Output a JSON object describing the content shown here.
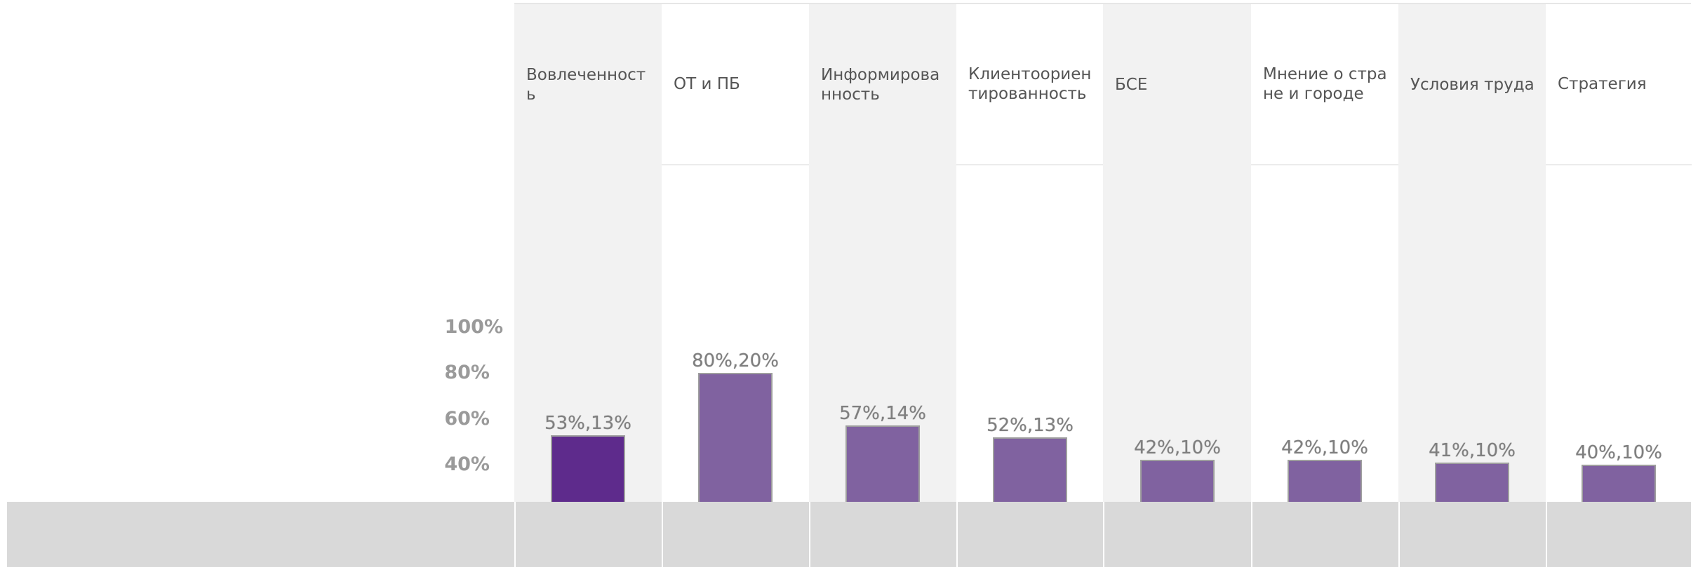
{
  "chart_data": {
    "type": "bar",
    "categories": [
      "Вовлеченность",
      "ОТ и ПБ",
      "Информированность",
      "Клиентоориентированность",
      "БСЕ",
      "Мнение о стране и городе",
      "Условия труда",
      "Стратегия"
    ],
    "values": [
      53,
      80,
      57,
      52,
      42,
      42,
      41,
      40
    ],
    "secondary_values": [
      13,
      20,
      14,
      13,
      10,
      10,
      10,
      10
    ],
    "data_labels": [
      "53%,13%",
      "80%,20%",
      "57%,14%",
      "52%,13%",
      "42%,10%",
      "42%,10%",
      "41%,10%",
      "40%,10%"
    ],
    "highlighted_index": 0,
    "y_ticks": [
      "100%",
      "80%",
      "60%",
      "40%"
    ],
    "y_tick_values": [
      100,
      80,
      60,
      40
    ],
    "ylim": [
      40,
      100
    ],
    "grid": false,
    "title": "",
    "xlabel": "",
    "ylabel": "",
    "colors": {
      "bar_highlight": "#5e2b8c",
      "bar_default": "#8062a0",
      "bar_border": "#9e9e9e",
      "band_shaded": "#f2f2f2",
      "band_plain": "#ffffff",
      "footer": "#d9d9d9"
    }
  }
}
